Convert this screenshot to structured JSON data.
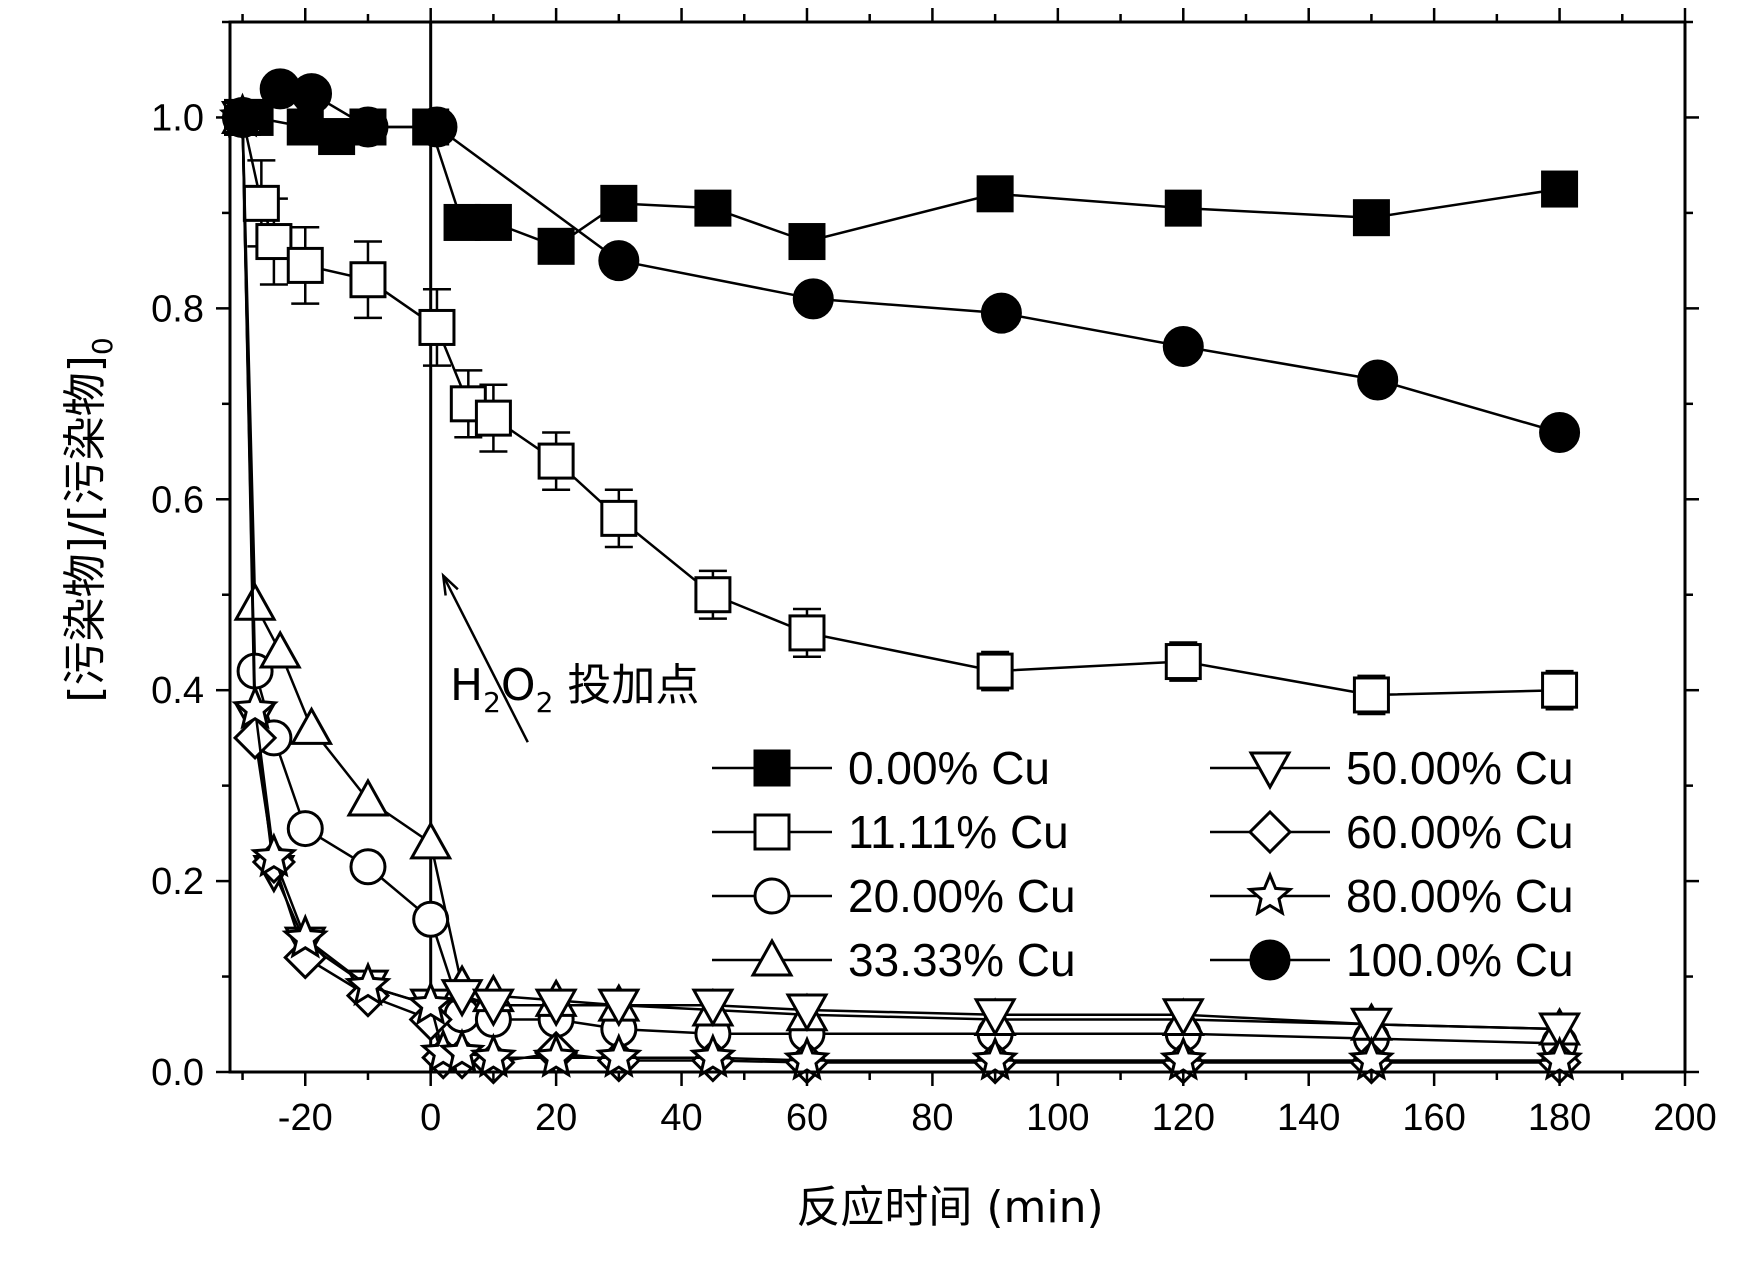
{
  "chart_data": {
    "type": "line",
    "xlabel": "反应时间 (min)",
    "ylabel": "[污染物]/[污染物]",
    "ylabel_subscript": "0",
    "xlim": [
      -32,
      200
    ],
    "ylim": [
      0.0,
      1.1
    ],
    "xticks": [
      -20,
      0,
      20,
      40,
      60,
      80,
      100,
      120,
      140,
      160,
      180,
      200
    ],
    "yticks": [
      0.0,
      0.2,
      0.4,
      0.6,
      0.8,
      1.0
    ],
    "xtick_labels": [
      "-20",
      "0",
      "20",
      "40",
      "60",
      "80",
      "100",
      "120",
      "140",
      "160",
      "180",
      "200"
    ],
    "ytick_labels": [
      "0.0",
      "0.2",
      "0.4",
      "0.6",
      "0.8",
      "1.0"
    ],
    "grid": false,
    "legend_position": "bottom-right",
    "vline_x": 0,
    "annotation": {
      "prefix": "H",
      "sub1": "2",
      "mid": "O",
      "sub2": "2",
      "suffix": " 投加点",
      "arrow_to": [
        2,
        0.52
      ],
      "text_at": [
        4,
        0.4
      ]
    },
    "series": [
      {
        "name": "0.00% Cu",
        "marker": "square-filled",
        "x": [
          -30,
          -28,
          -20,
          -15,
          -10,
          0,
          5,
          10,
          20,
          30,
          45,
          60,
          90,
          120,
          150,
          180
        ],
        "y": [
          1.0,
          1.0,
          0.99,
          0.98,
          0.99,
          0.99,
          0.89,
          0.89,
          0.865,
          0.91,
          0.905,
          0.87,
          0.92,
          0.905,
          0.895,
          0.925
        ]
      },
      {
        "name": "11.11% Cu",
        "marker": "square-open",
        "error_bars": true,
        "x": [
          -30,
          -27,
          -25,
          -20,
          -10,
          1,
          6,
          10,
          20,
          30,
          45,
          60,
          90,
          120,
          150,
          180
        ],
        "y": [
          1.0,
          0.91,
          0.87,
          0.845,
          0.83,
          0.78,
          0.7,
          0.685,
          0.64,
          0.58,
          0.5,
          0.46,
          0.42,
          0.43,
          0.395,
          0.4
        ],
        "err": [
          0.0,
          0.045,
          0.045,
          0.04,
          0.04,
          0.04,
          0.035,
          0.035,
          0.03,
          0.03,
          0.025,
          0.025,
          0.02,
          0.02,
          0.02,
          0.02
        ]
      },
      {
        "name": "20.00% Cu",
        "marker": "circle-open",
        "x": [
          -30,
          -28,
          -25,
          -20,
          -10,
          0,
          5,
          10,
          20,
          30,
          45,
          60,
          90,
          120,
          150,
          180
        ],
        "y": [
          1.0,
          0.42,
          0.35,
          0.255,
          0.215,
          0.16,
          0.06,
          0.055,
          0.055,
          0.045,
          0.04,
          0.04,
          0.04,
          0.04,
          0.035,
          0.03
        ]
      },
      {
        "name": "33.33% Cu",
        "marker": "triangle-up-open",
        "x": [
          -30,
          -28,
          -24,
          -19,
          -10,
          0,
          5,
          10,
          20,
          30,
          45,
          60,
          90,
          120,
          150,
          180
        ],
        "y": [
          1.0,
          0.49,
          0.44,
          0.36,
          0.285,
          0.24,
          0.09,
          0.08,
          0.075,
          0.07,
          0.065,
          0.06,
          0.055,
          0.055,
          0.05,
          0.045
        ]
      },
      {
        "name": "50.00% Cu",
        "marker": "triangle-down-open",
        "x": [
          -30,
          -28,
          -25,
          -20,
          -10,
          0,
          5,
          10,
          20,
          30,
          45,
          60,
          90,
          120,
          150,
          180
        ],
        "y": [
          1.0,
          0.37,
          0.21,
          0.135,
          0.09,
          0.07,
          0.08,
          0.07,
          0.07,
          0.07,
          0.07,
          0.065,
          0.06,
          0.06,
          0.05,
          0.045
        ]
      },
      {
        "name": "60.00% Cu",
        "marker": "diamond-open",
        "x": [
          -30,
          -28,
          -25,
          -20,
          -10,
          0,
          2,
          5,
          10,
          20,
          30,
          45,
          60,
          90,
          120,
          150,
          180
        ],
        "y": [
          1.0,
          0.35,
          0.22,
          0.12,
          0.08,
          0.055,
          0.015,
          0.015,
          0.01,
          0.02,
          0.012,
          0.012,
          0.01,
          0.01,
          0.01,
          0.01,
          0.01
        ]
      },
      {
        "name": "80.00% Cu",
        "marker": "star-open",
        "x": [
          -30,
          -28,
          -25,
          -20,
          -10,
          0,
          2,
          5,
          10,
          20,
          30,
          45,
          60,
          90,
          120,
          150,
          180
        ],
        "y": [
          1.0,
          0.38,
          0.225,
          0.14,
          0.09,
          0.07,
          0.02,
          0.02,
          0.015,
          0.015,
          0.015,
          0.015,
          0.012,
          0.012,
          0.012,
          0.012,
          0.012
        ]
      },
      {
        "name": "100.0% Cu",
        "marker": "circle-filled",
        "x": [
          -30,
          -24,
          -19,
          -10,
          1,
          30,
          61,
          91,
          120,
          151,
          180
        ],
        "y": [
          1.0,
          1.03,
          1.025,
          0.99,
          0.99,
          0.85,
          0.81,
          0.795,
          0.76,
          0.725,
          0.67
        ]
      }
    ]
  }
}
